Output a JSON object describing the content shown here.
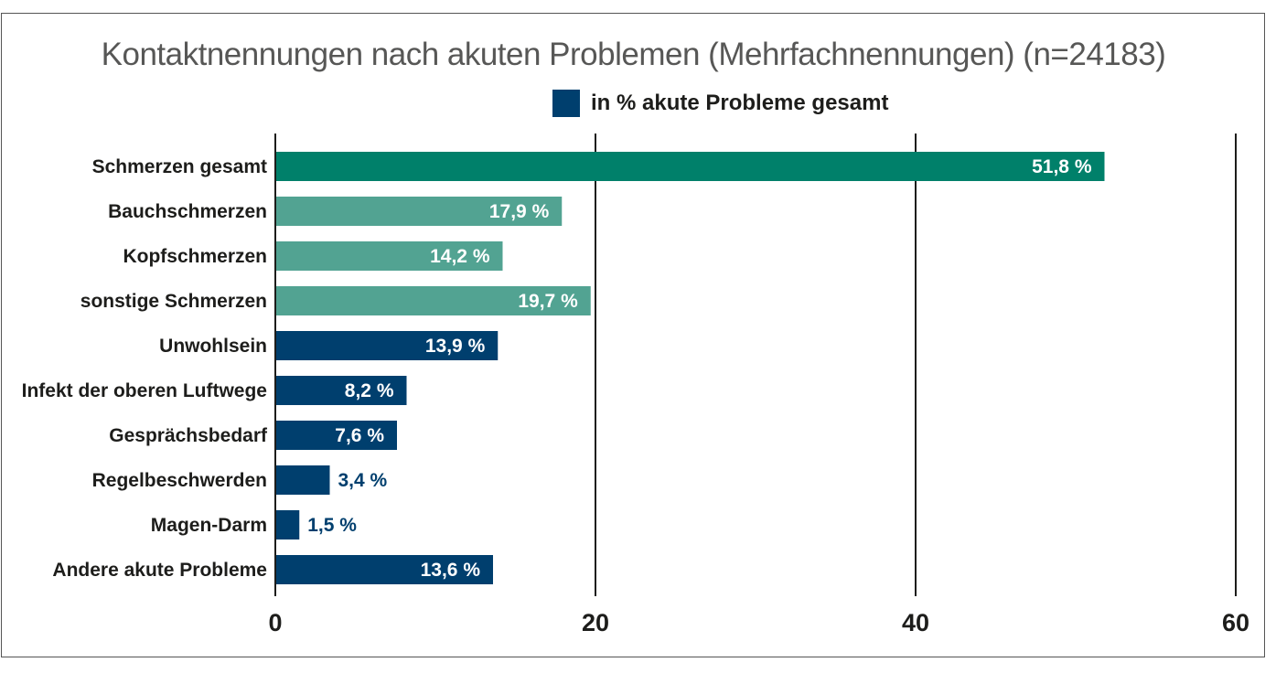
{
  "chart_data": {
    "type": "bar",
    "orientation": "horizontal",
    "title": "Kontaktnennungen nach akuten Problemen (Mehrfachnennungen) (n=24183)",
    "legend": [
      {
        "label": "in % akute Probleme gesamt",
        "color": "#003f6e"
      }
    ],
    "legend_position": "top-center",
    "xlabel": "",
    "ylabel": "",
    "xlim": [
      0,
      60
    ],
    "xticks": [
      0,
      20,
      40,
      60
    ],
    "grid": true,
    "categories": [
      "Schmerzen gesamt",
      "Bauchschmerzen",
      "Kopfschmerzen",
      "sonstige Schmerzen",
      "Unwohlsein",
      "Infekt der oberen Luftwege",
      "Gesprächsbedarf",
      "Regelbeschwerden",
      "Magen-Darm",
      "Andere akute Probleme"
    ],
    "values": [
      51.8,
      17.9,
      14.2,
      19.7,
      13.9,
      8.2,
      7.6,
      3.4,
      1.5,
      13.6
    ],
    "value_labels": [
      "51,8 %",
      "17,9 %",
      "14,2 %",
      "19,7 %",
      "13,9 %",
      "8,2 %",
      "7,6 %",
      "3,4 %",
      "1,5 %",
      "13,6 %"
    ],
    "bar_colors": [
      "#00806a",
      "#52a392",
      "#52a392",
      "#52a392",
      "#003f6e",
      "#003f6e",
      "#003f6e",
      "#003f6e",
      "#003f6e",
      "#003f6e"
    ],
    "label_inside": [
      true,
      true,
      true,
      true,
      true,
      true,
      true,
      false,
      false,
      true
    ]
  }
}
